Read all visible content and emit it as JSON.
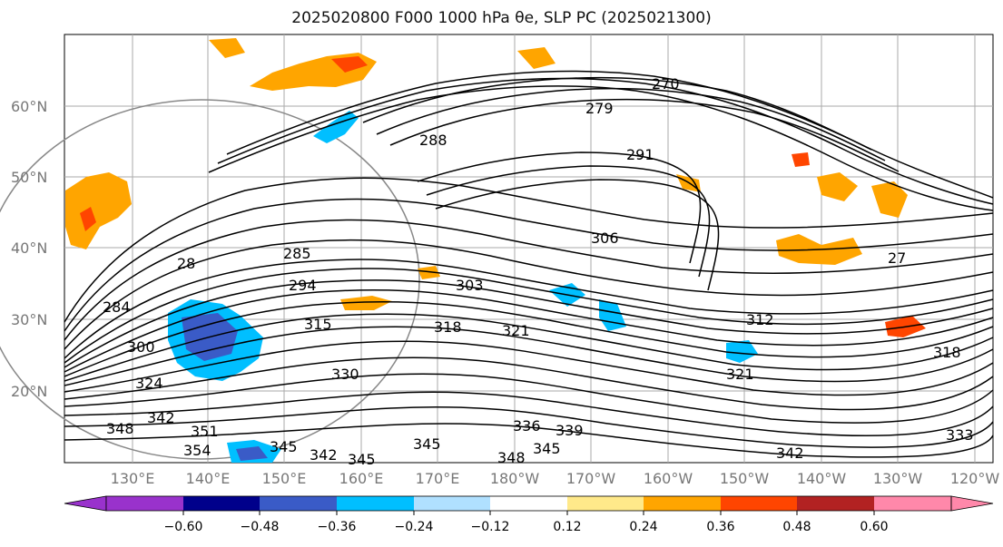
{
  "title": {
    "text": "2025020800 F000 1000 hPa θe, SLP PC (2025021300)"
  },
  "map": {
    "lat_labels": [
      "60°N",
      "50°N",
      "40°N",
      "30°N",
      "20°N"
    ],
    "lon_labels": [
      "130°E",
      "140°E",
      "150°E",
      "160°E",
      "170°E",
      "180°W",
      "170°W",
      "160°W",
      "150°W",
      "140°W",
      "130°W",
      "120°W"
    ],
    "contour_labels": [
      "270",
      "279",
      "288",
      "291",
      "285",
      "306",
      "28",
      "294",
      "303",
      "284",
      "315",
      "318",
      "321",
      "312",
      "300",
      "324",
      "330",
      "318",
      "321",
      "348",
      "342",
      "351",
      "354",
      "345",
      "342",
      "345",
      "345",
      "336",
      "339",
      "348",
      "345",
      "342",
      "333",
      "27"
    ]
  },
  "colorbar": {
    "tick_labels": [
      "−0.60",
      "−0.48",
      "−0.36",
      "−0.24",
      "−0.12",
      "0.12",
      "0.24",
      "0.36",
      "0.48",
      "0.60"
    ],
    "colors": [
      "#9932cc",
      "#00008b",
      "#3a5bc7",
      "#00bfff",
      "#b0e0ff",
      "#ffffff",
      "#ffe98a",
      "#ffa500",
      "#ff4500",
      "#b22222",
      "#ff88aa"
    ]
  }
}
